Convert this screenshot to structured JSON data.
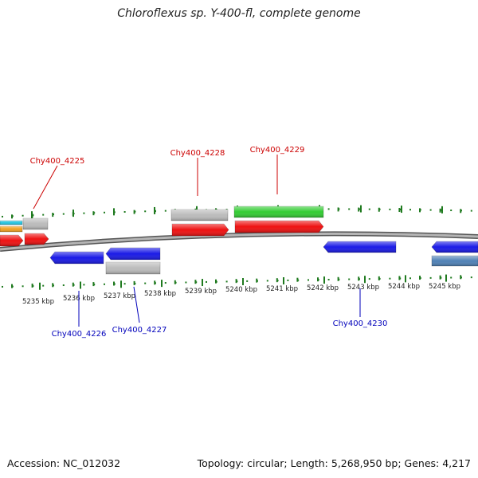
{
  "title": "Chloroflexus sp. Y-400-fl, complete genome",
  "footer": {
    "accession": "Accession: NC_012032",
    "topology": "Topology: circular; Length: 5,268,950 bp; Genes: 4,217"
  },
  "colors": {
    "backbone": "#8a8a8a",
    "tick_marks": "#1f7a1f",
    "forward_label": "#cc0000",
    "reverse_label": "#0000bb",
    "gene_red": "#ee1111",
    "gene_green": "#33cc33",
    "gene_blue": "#1a1ae6",
    "gene_gray": "#bbbbbb",
    "gene_steel": "#4f81b5",
    "gene_cyan": "#22c4e0",
    "gene_orange": "#f0a020"
  },
  "scale_labels": [
    "5235 kbp",
    "5236 kbp",
    "5237 kbp",
    "5238 kbp",
    "5239 kbp",
    "5240 kbp",
    "5241 kbp",
    "5242 kbp",
    "5243 kbp",
    "5244 kbp",
    "5245 kbp"
  ],
  "forward_gene_labels": [
    "Chy400_4225",
    "Chy400_4228",
    "Chy400_4229"
  ],
  "reverse_gene_labels": [
    "Chy400_4226",
    "Chy400_4227",
    "Chy400_4230"
  ]
}
